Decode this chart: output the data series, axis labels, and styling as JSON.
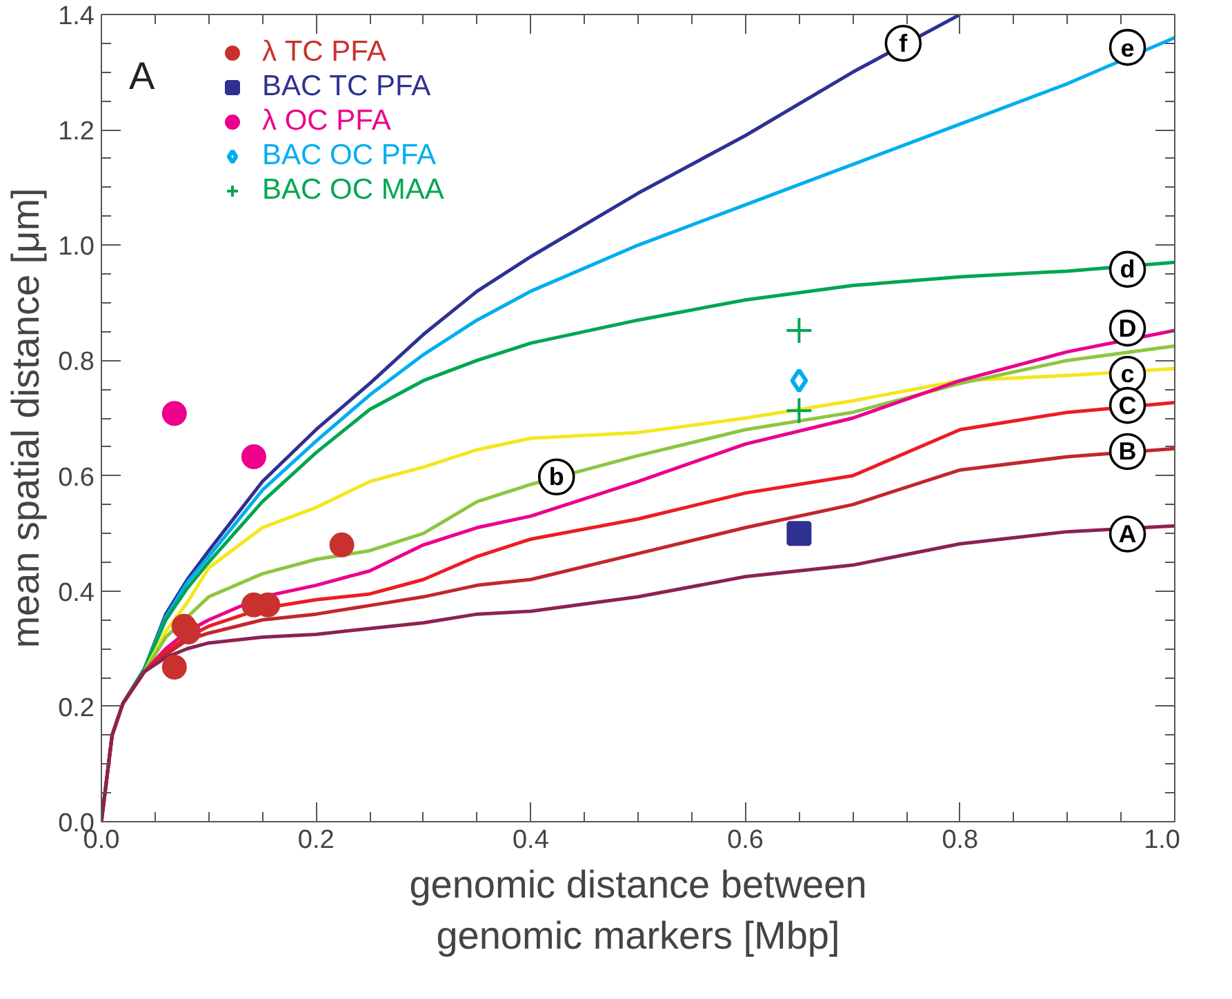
{
  "chart_data": {
    "type": "line",
    "xlabel": "genomic distance between\ngenomic markers [Mbp]",
    "ylabel": "mean spatial distance [μm]",
    "x": [
      0,
      0.01,
      0.02,
      0.04,
      0.06,
      0.08,
      0.1,
      0.15,
      0.2,
      0.25,
      0.3,
      0.35,
      0.4,
      0.5,
      0.6,
      0.7,
      0.8,
      0.9,
      1.0
    ],
    "xlim": [
      0,
      1.0
    ],
    "ylim": [
      0,
      1.4
    ],
    "xticks": [
      {
        "value": 0,
        "label": "0.0"
      },
      {
        "value": 0.05,
        "label": null
      },
      {
        "value": 0.1,
        "label": null
      },
      {
        "value": 0.15,
        "label": null
      },
      0.2,
      {
        "value": 0.25,
        "label": null
      },
      {
        "value": 0.3,
        "label": null
      },
      {
        "value": 0.35,
        "label": null
      },
      0.4,
      {
        "value": 0.45,
        "label": null
      },
      {
        "value": 0.5,
        "label": null
      },
      {
        "value": 0.55,
        "label": null
      },
      0.6,
      {
        "value": 0.65,
        "label": null
      },
      {
        "value": 0.7,
        "label": null
      },
      {
        "value": 0.75,
        "label": null
      },
      0.8,
      {
        "value": 0.85,
        "label": null
      },
      {
        "value": 0.9,
        "label": null
      },
      {
        "value": 0.95,
        "label": null
      },
      {
        "value": 1,
        "label": "1.0"
      }
    ],
    "yticks": [
      {
        "value": 0,
        "label": "0.0"
      },
      {
        "value": 0.05,
        "label": null
      },
      {
        "value": 0.1,
        "label": null
      },
      {
        "value": 0.15,
        "label": null
      },
      0.2,
      {
        "value": 0.25,
        "label": null
      },
      {
        "value": 0.3,
        "label": null
      },
      {
        "value": 0.35,
        "label": null
      },
      0.4,
      {
        "value": 0.45,
        "label": null
      },
      {
        "value": 0.5,
        "label": null
      },
      {
        "value": 0.55,
        "label": null
      },
      0.6,
      {
        "value": 0.65,
        "label": null
      },
      {
        "value": 0.7,
        "label": null
      },
      {
        "value": 0.75,
        "label": null
      },
      0.8,
      {
        "value": 0.85,
        "label": null
      },
      {
        "value": 0.9,
        "label": null
      },
      {
        "value": 0.95,
        "label": null
      },
      {
        "value": 1,
        "label": "1.0"
      },
      {
        "value": 1.05,
        "label": null
      },
      {
        "value": 1.1,
        "label": null
      },
      {
        "value": 1.15,
        "label": null
      },
      1.2,
      {
        "value": 1.25,
        "label": null
      },
      {
        "value": 1.3,
        "label": null
      },
      {
        "value": 1.35,
        "label": null
      },
      1.4
    ],
    "legend": "top left",
    "series": [
      {
        "color": "#2e3192",
        "values": [
          null,
          null,
          0.205,
          0.265,
          0.36,
          0.42,
          0.47,
          0.59,
          0.68,
          0.76,
          0.845,
          0.92,
          0.98,
          1.09,
          1.19,
          1.3,
          1.4,
          null,
          null
        ]
      },
      {
        "color": "#00aeef",
        "values": [
          null,
          null,
          0.205,
          0.265,
          0.355,
          0.415,
          0.46,
          0.575,
          0.66,
          0.74,
          0.81,
          0.87,
          0.92,
          1.0,
          1.07,
          1.14,
          1.21,
          1.28,
          1.36
        ]
      },
      {
        "color": "#00a651",
        "values": [
          0,
          0.15,
          0.205,
          0.265,
          0.35,
          0.405,
          0.45,
          0.555,
          0.64,
          0.715,
          0.765,
          0.8,
          0.83,
          0.87,
          0.905,
          0.93,
          0.945,
          0.955,
          0.97
        ]
      },
      {
        "color": "#f5e61e",
        "values": [
          null,
          null,
          0.205,
          0.26,
          0.33,
          0.38,
          0.44,
          0.51,
          0.545,
          0.59,
          0.615,
          0.645,
          0.665,
          0.675,
          0.7,
          0.73,
          0.765,
          0.774,
          0.786
        ]
      },
      {
        "color": "#8dc63f",
        "values": [
          null,
          null,
          0.205,
          0.26,
          0.32,
          0.355,
          0.39,
          0.43,
          0.455,
          0.47,
          0.5,
          0.555,
          0.585,
          0.635,
          0.68,
          0.71,
          0.76,
          0.8,
          0.825
        ]
      },
      {
        "color": "#ec008c",
        "values": [
          null,
          null,
          0.205,
          0.26,
          0.3,
          0.33,
          0.35,
          0.39,
          0.41,
          0.435,
          0.48,
          0.51,
          0.53,
          0.59,
          0.655,
          0.7,
          0.765,
          0.815,
          0.852
        ]
      },
      {
        "color": "#ed1c24",
        "values": [
          0,
          0.15,
          0.205,
          0.26,
          0.295,
          0.32,
          0.339,
          0.37,
          0.385,
          0.395,
          0.42,
          0.46,
          0.49,
          0.525,
          0.57,
          0.6,
          0.68,
          0.71,
          0.727
        ]
      },
      {
        "color": "#c1272d",
        "values": [
          0,
          0.15,
          0.205,
          0.26,
          0.29,
          0.315,
          0.327,
          0.35,
          0.36,
          0.375,
          0.39,
          0.41,
          0.42,
          0.465,
          0.51,
          0.55,
          0.61,
          0.633,
          0.647
        ]
      },
      {
        "color": "#8b2252",
        "values": [
          0,
          0.15,
          0.205,
          0.26,
          0.285,
          0.3,
          0.31,
          0.32,
          0.325,
          0.335,
          0.345,
          0.36,
          0.365,
          0.39,
          0.425,
          0.445,
          0.482,
          0.503,
          0.513
        ]
      },
      {
        "type": "scatter",
        "name": "λ TC PFA",
        "marker": "circle",
        "color": "#c8312e",
        "x": [
          0.068,
          0.077,
          0.081,
          0.142,
          0.155,
          0.224
        ],
        "values": [
          0.268,
          0.339,
          0.329,
          0.376,
          0.376,
          0.48
        ]
      },
      {
        "type": "scatter",
        "name": "BAC TC PFA",
        "marker": "square",
        "color": "#2e3192",
        "x": [
          0.65
        ],
        "values": [
          0.5
        ]
      },
      {
        "type": "scatter",
        "name": "λ OC PFA",
        "marker": "circle",
        "color": "#ec008c",
        "x": [
          0.068,
          0.142
        ],
        "values": [
          0.708,
          0.633
        ]
      },
      {
        "type": "scatter",
        "name": "BAC OC PFA",
        "marker": "diamond",
        "color": "#00aeef",
        "x": [
          0.65
        ],
        "values": [
          0.765
        ]
      },
      {
        "type": "scatter",
        "name": "BAC OC MAA",
        "marker": "cross",
        "color": "#00a651",
        "x": [
          0.65,
          0.65
        ],
        "values": [
          0.852,
          0.713
        ]
      }
    ],
    "annotations": [
      "A",
      {
        "text": "f",
        "x": 0.747,
        "y": 1.35
      },
      {
        "text": "e",
        "x": 0.956,
        "y": 1.343
      },
      {
        "text": "d",
        "x": 0.956,
        "y": 0.958
      },
      {
        "text": "D",
        "x": 0.956,
        "y": 0.856
      },
      {
        "text": "c",
        "x": 0.956,
        "y": 0.776
      },
      {
        "text": "C",
        "x": 0.956,
        "y": 0.722
      },
      {
        "text": "B",
        "x": 0.956,
        "y": 0.642
      },
      {
        "text": "A",
        "x": 0.956,
        "y": 0.499
      },
      {
        "text": "b",
        "x": 0.424,
        "y": 0.598
      }
    ]
  }
}
